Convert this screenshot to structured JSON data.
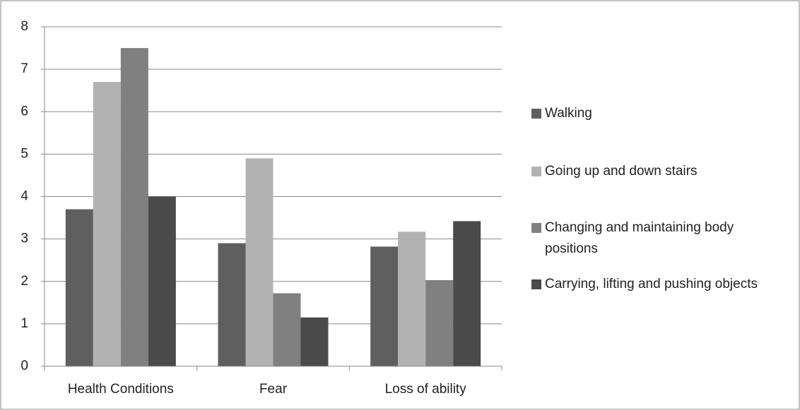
{
  "chart_data": {
    "type": "bar",
    "categories": [
      "Health Conditions",
      "Fear",
      "Loss of ability"
    ],
    "series": [
      {
        "name": "Walking",
        "color": "#5f5f5f",
        "values": [
          3.7,
          2.9,
          2.82
        ]
      },
      {
        "name": "Going up and down stairs",
        "color": "#b2b2b2",
        "values": [
          6.7,
          4.9,
          3.17
        ]
      },
      {
        "name": "Changing and maintaining body positions",
        "color": "#808080",
        "values": [
          7.5,
          1.72,
          2.03
        ]
      },
      {
        "name": "Carrying, lifting and pushing objects",
        "color": "#4a4a4a",
        "values": [
          4.0,
          1.15,
          3.42
        ]
      }
    ],
    "ylim": [
      0,
      8
    ],
    "yticks": [
      0,
      1,
      2,
      3,
      4,
      5,
      6,
      7,
      8
    ],
    "grid": true,
    "legend": "right"
  }
}
